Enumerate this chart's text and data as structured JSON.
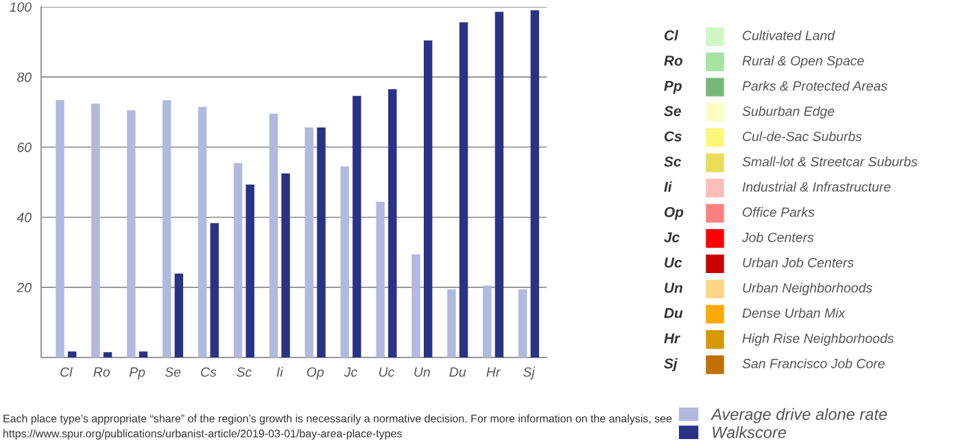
{
  "chart_data": [
    {
      "type": "bar",
      "categories": [
        "Cl",
        "Ro",
        "Pp",
        "Se",
        "Cs",
        "Sc",
        "Ii",
        "Op",
        "Jc",
        "Uc",
        "Un",
        "Du",
        "Hr",
        "Sj"
      ],
      "series": [
        {
          "name": "Average drive alone rate",
          "color": "#b1b9de",
          "values": [
            73.4,
            72.4,
            70.5,
            73.4,
            71.5,
            55.5,
            69.5,
            65.6,
            54.5,
            44.4,
            29.4,
            19.4,
            20.5,
            19.4
          ]
        },
        {
          "name": "Walkscore",
          "color": "#2a3286",
          "values": [
            1.7,
            1.5,
            1.7,
            23.9,
            38.3,
            49.3,
            52.5,
            65.6,
            74.6,
            76.5,
            90.4,
            95.6,
            98.6,
            99.0
          ]
        }
      ],
      "ylim": [
        0,
        100
      ],
      "yticks": [
        20,
        40,
        60,
        80,
        100
      ],
      "grid": "y",
      "legend": "bottom right",
      "annotations": [
        "Each place type’s appropriate “share” of the region’s growth is necessarily a normative decision. For more information on the analysis, see https://www.spur.org/publications/urbanist-article/2019-03-01/bay-area-place-types"
      ]
    },
    {
      "type": "other",
      "categories": [
        "Cl",
        "Ro",
        "Pp",
        "Se",
        "Cs",
        "Sc",
        "Ii",
        "Op",
        "Jc",
        "Uc",
        "Un",
        "Du",
        "Hr",
        "Sj"
      ],
      "colors": [
        "#cff7c5",
        "#a6e3a1",
        "#78b97a",
        "#fffcc4",
        "#fbf77a",
        "#ebdd5a",
        "#ffbcb8",
        "#ff8080",
        "#ff0000",
        "#c80000",
        "#ffd485",
        "#ffa800",
        "#d49a00",
        "#c07000"
      ],
      "annotations": [
        "Cultivated Land",
        "Rural & Open Space",
        "Parks & Protected Areas",
        "Suburban Edge",
        "Cul-de-Sac Suburbs",
        "Small-lot & Streetcar Suburbs",
        "Industrial & Infrastructure",
        "Office Parks",
        "Job Centers",
        "Urban Job Centers",
        "Urban Neighborhoods",
        "Dense Urban Mix",
        "High Rise Neighborhoods",
        "San Francisco Job Core"
      ]
    }
  ]
}
